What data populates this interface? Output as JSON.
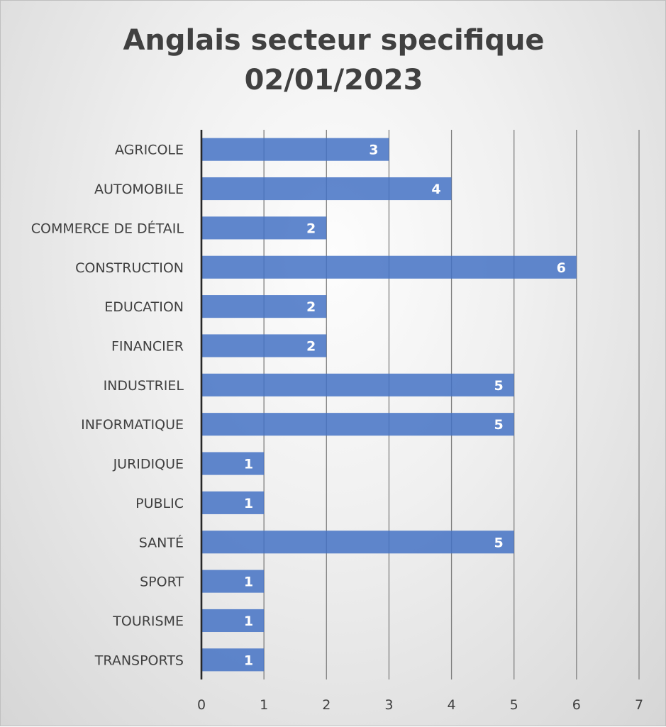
{
  "chart_data": {
    "type": "bar",
    "orientation": "horizontal",
    "title_lines": [
      "Anglais secteur specifique",
      "02/01/2023"
    ],
    "categories": [
      "AGRICOLE",
      "AUTOMOBILE",
      "COMMERCE DE DÉTAIL",
      "CONSTRUCTION",
      "EDUCATION",
      "FINANCIER",
      "INDUSTRIEL",
      "INFORMATIQUE",
      "JURIDIQUE",
      "PUBLIC",
      "SANTÉ",
      "SPORT",
      "TOURISME",
      "TRANSPORTS"
    ],
    "values": [
      3,
      4,
      2,
      6,
      2,
      2,
      5,
      5,
      1,
      1,
      5,
      1,
      1,
      1
    ],
    "x_ticks": [
      0,
      1,
      2,
      3,
      4,
      5,
      6,
      7
    ],
    "xlim": [
      0,
      7
    ],
    "xlabel": "",
    "ylabel": "",
    "grid": "vertical",
    "legend": "none",
    "data_labels": "inside-end",
    "colors": {
      "bar": "#4472c4",
      "grid": "#7f7f7f",
      "axis": "#262626",
      "text": "#404040",
      "data_label": "#ffffff"
    }
  }
}
